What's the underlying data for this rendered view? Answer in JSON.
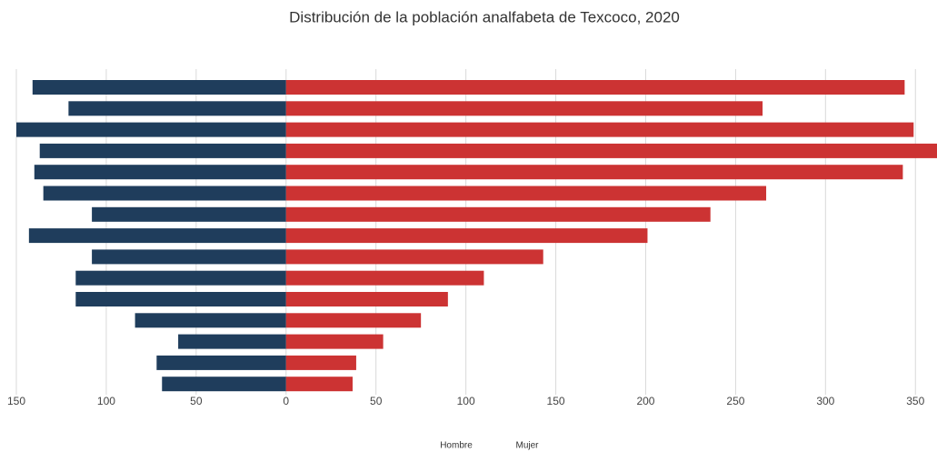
{
  "chart_data": {
    "type": "bar",
    "orientation": "horizontal",
    "title": "Distribución de la población analfabeta de Texcoco, 2020",
    "categories": [
      null,
      null,
      null,
      null,
      null,
      null,
      null,
      null,
      null,
      null,
      null,
      null,
      null,
      null,
      null
    ],
    "series": [
      {
        "name": "Hombre",
        "color": "#1f3d5c",
        "values": [
          -141,
          -121,
          -150,
          -137,
          -140,
          -135,
          -108,
          -143,
          -108,
          -117,
          -117,
          -84,
          -60,
          -72,
          -69
        ]
      },
      {
        "name": "Mujer",
        "color": "#cc3333",
        "values": [
          344,
          265,
          349,
          362,
          343,
          267,
          236,
          201,
          143,
          110,
          90,
          75,
          54,
          39,
          37
        ]
      }
    ],
    "xlim": [
      -150,
      362
    ],
    "xticks": [
      {
        "value": -150,
        "label": "150"
      },
      {
        "value": -100,
        "label": "100"
      },
      {
        "value": -50,
        "label": "50"
      },
      0,
      50,
      100,
      150,
      200,
      250,
      300,
      350
    ],
    "grid": true,
    "legend": "bottom"
  }
}
